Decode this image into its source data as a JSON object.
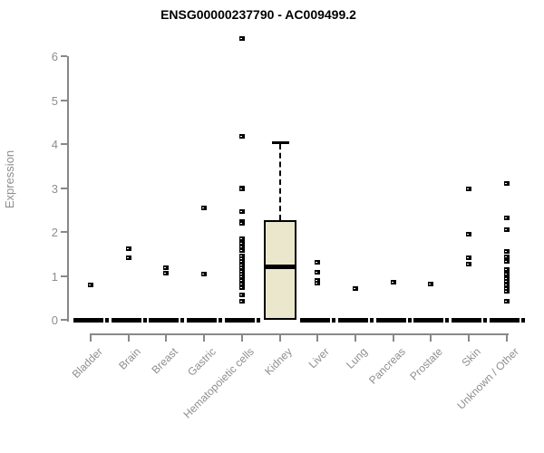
{
  "header": {
    "title": "ENSG00000237790 - AC009499.2"
  },
  "chart_data": {
    "type": "boxplot",
    "title": "ENSG00000237790 - AC009499.2",
    "xlabel": "",
    "ylabel": "Expression",
    "ylim": [
      0,
      6
    ],
    "yticks": [
      0,
      1,
      2,
      3,
      4,
      5,
      6
    ],
    "grid": false,
    "legend": "none",
    "colors": {
      "box_fill": "#EBE7CD",
      "box_border": "#000000",
      "point": "#000000",
      "axis_line": "#888888",
      "axis_text": "#8E8E8E",
      "title_text": "#000000",
      "background": "#FFFFFF"
    },
    "categories": [
      "Bladder",
      "Brain",
      "Breast",
      "Gastric",
      "Hematopoietic cells",
      "Kidney",
      "Liver",
      "Lung",
      "Pancreas",
      "Prostate",
      "Skin",
      "Unknown / Other"
    ],
    "series": [
      {
        "category": "Bladder",
        "box": {
          "q1": 0,
          "median": 0,
          "q3": 0,
          "whisker_low": 0,
          "whisker_high": 0
        },
        "outliers": [
          0.8
        ]
      },
      {
        "category": "Brain",
        "box": {
          "q1": 0,
          "median": 0,
          "q3": 0,
          "whisker_low": 0,
          "whisker_high": 0
        },
        "outliers": [
          1.63,
          1.42
        ]
      },
      {
        "category": "Breast",
        "box": {
          "q1": 0,
          "median": 0,
          "q3": 0,
          "whisker_low": 0,
          "whisker_high": 0
        },
        "outliers": [
          1.19,
          1.08
        ]
      },
      {
        "category": "Gastric",
        "box": {
          "q1": 0,
          "median": 0,
          "q3": 0,
          "whisker_low": 0,
          "whisker_high": 0
        },
        "outliers": [
          2.56,
          1.06
        ]
      },
      {
        "category": "Hematopoietic cells",
        "box": {
          "q1": 0,
          "median": 0,
          "q3": 0,
          "whisker_low": 0,
          "whisker_high": 0
        },
        "outliers": [
          6.41,
          4.18,
          3.02,
          2.98,
          2.47,
          2.25,
          2.2,
          1.85,
          1.76,
          1.68,
          1.58,
          1.47,
          1.4,
          1.33,
          1.26,
          1.19,
          1.12,
          1.05,
          0.98,
          0.9,
          0.82,
          0.74,
          0.58,
          0.44
        ]
      },
      {
        "category": "Kidney",
        "box": {
          "q1": 0,
          "median": 1.21,
          "q3": 2.26,
          "whisker_low": 0,
          "whisker_high": 4.07
        },
        "outliers": []
      },
      {
        "category": "Liver",
        "box": {
          "q1": 0,
          "median": 0,
          "q3": 0,
          "whisker_low": 0,
          "whisker_high": 0
        },
        "outliers": [
          1.32,
          1.1,
          0.9,
          0.84
        ]
      },
      {
        "category": "Lung",
        "box": {
          "q1": 0,
          "median": 0,
          "q3": 0,
          "whisker_low": 0,
          "whisker_high": 0
        },
        "outliers": [
          0.73
        ]
      },
      {
        "category": "Pancreas",
        "box": {
          "q1": 0,
          "median": 0,
          "q3": 0,
          "whisker_low": 0,
          "whisker_high": 0
        },
        "outliers": [
          0.87
        ]
      },
      {
        "category": "Prostate",
        "box": {
          "q1": 0,
          "median": 0,
          "q3": 0,
          "whisker_low": 0,
          "whisker_high": 0
        },
        "outliers": [
          0.83
        ]
      },
      {
        "category": "Skin",
        "box": {
          "q1": 0,
          "median": 0,
          "q3": 0,
          "whisker_low": 0,
          "whisker_high": 0
        },
        "outliers": [
          3.0,
          1.95,
          1.43,
          1.28
        ]
      },
      {
        "category": "Unknown / Other",
        "box": {
          "q1": 0,
          "median": 0,
          "q3": 0,
          "whisker_low": 0,
          "whisker_high": 0
        },
        "outliers": [
          3.11,
          2.33,
          2.06,
          1.57,
          1.45,
          1.33,
          1.16,
          1.06,
          0.95,
          0.88,
          0.8,
          0.72,
          0.65,
          0.44
        ]
      }
    ]
  }
}
